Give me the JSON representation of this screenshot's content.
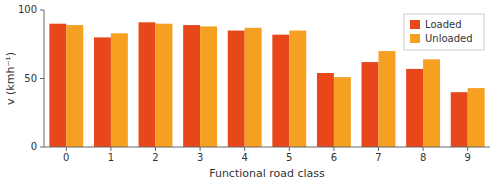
{
  "chart_data": {
    "type": "bar",
    "xlabel": "Functional road class",
    "ylabel": "v (kmh⁻¹)",
    "categories": [
      0,
      1,
      2,
      3,
      4,
      5,
      6,
      7,
      8,
      9
    ],
    "series": [
      {
        "name": "Loaded",
        "color": "#e8471a",
        "values": [
          90,
          80,
          91,
          89,
          85,
          82,
          54,
          62,
          57,
          40
        ]
      },
      {
        "name": "Unloaded",
        "color": "#f5a020",
        "values": [
          89,
          83,
          90,
          88,
          87,
          85,
          51,
          70,
          64,
          43
        ]
      }
    ],
    "ylim": [
      0,
      100
    ],
    "yticks": [
      0,
      50,
      100
    ],
    "legend": "upper right",
    "grid": false
  }
}
